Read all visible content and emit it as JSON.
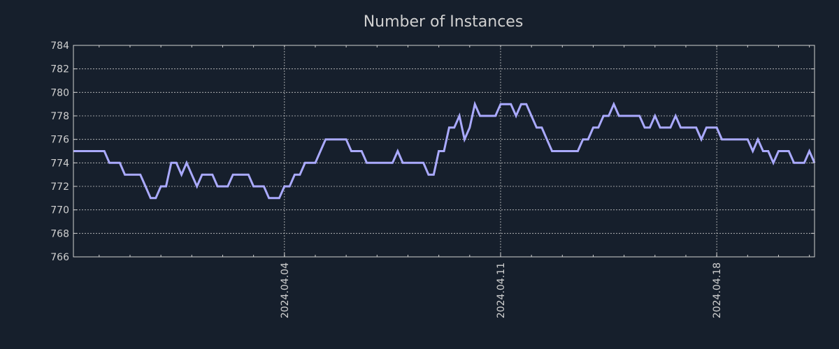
{
  "chart_data": {
    "type": "line",
    "title": "Number of Instances",
    "xlabel": "",
    "ylabel": "",
    "x_start": "2024-03-28 04:00",
    "x_interval_hours": 4,
    "xlim_index": [
      0,
      144
    ],
    "ylim": [
      766,
      784
    ],
    "yticks": [
      "766",
      "768",
      "770",
      "772",
      "774",
      "776",
      "778",
      "780",
      "782",
      "784"
    ],
    "xticks": [
      {
        "label": "2024.04.04",
        "index": 41
      },
      {
        "label": "2024.04.11",
        "index": 83
      },
      {
        "label": "2024.04.18",
        "index": 125
      }
    ],
    "minor_tick_every_index": 6,
    "minor_tick_first_index": 5,
    "grid": true,
    "series": [
      {
        "name": "Number of Instances",
        "color": "#aaaaff",
        "values": [
          775,
          775,
          775,
          775,
          775,
          775,
          775,
          774,
          774,
          774,
          773,
          773,
          773,
          773,
          772,
          771,
          771,
          772,
          772,
          774,
          774,
          773,
          774,
          773,
          772,
          773,
          773,
          773,
          772,
          772,
          772,
          773,
          773,
          773,
          773,
          772,
          772,
          772,
          771,
          771,
          771,
          772,
          772,
          773,
          773,
          774,
          774,
          774,
          775,
          776,
          776,
          776,
          776,
          776,
          775,
          775,
          775,
          774,
          774,
          774,
          774,
          774,
          774,
          775,
          774,
          774,
          774,
          774,
          774,
          773,
          773,
          775,
          775,
          777,
          777,
          778,
          776,
          777,
          779,
          778,
          778,
          778,
          778,
          779,
          779,
          779,
          778,
          779,
          779,
          778,
          777,
          777,
          776,
          775,
          775,
          775,
          775,
          775,
          775,
          776,
          776,
          777,
          777,
          778,
          778,
          779,
          778,
          778,
          778,
          778,
          778,
          777,
          777,
          778,
          777,
          777,
          777,
          778,
          777,
          777,
          777,
          777,
          776,
          777,
          777,
          777,
          776,
          776,
          776,
          776,
          776,
          776,
          775,
          776,
          775,
          775,
          774,
          775,
          775,
          775,
          774,
          774,
          774,
          775,
          774
        ]
      }
    ]
  },
  "colors": {
    "background": "#161f2c",
    "axis": "#d0d0d0",
    "grid": "#c8c8c8",
    "line": "#aaaaff"
  }
}
